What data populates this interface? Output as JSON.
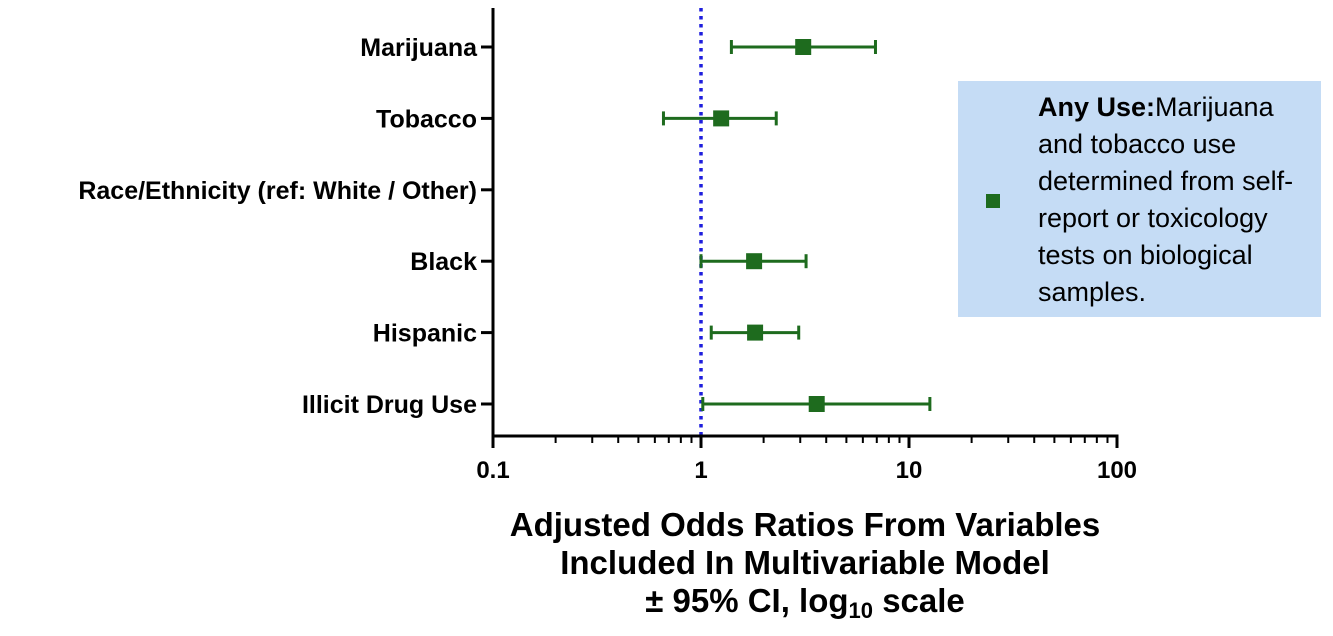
{
  "chart_data": {
    "type": "forest",
    "scale": "log10",
    "xlim": [
      0.1,
      100
    ],
    "reference_line": 1,
    "x_ticks": [
      "0.1",
      "1",
      "10",
      "100"
    ],
    "axis_title_lines": [
      "Adjusted Odds Ratios From Variables",
      "Included In Multivariable Model"
    ],
    "axis_title_line3": {
      "prefix": "± 95% CI, log",
      "sub": "10",
      "suffix": " scale"
    },
    "colors": {
      "marker": "#1e6b1e",
      "reference": "#1f1fdd",
      "legend_bg": "#c5dcf5"
    },
    "rows": [
      {
        "label": "Marijuana",
        "or": 3.1,
        "lo": 1.4,
        "hi": 6.9
      },
      {
        "label": "Tobacco",
        "or": 1.25,
        "lo": 0.66,
        "hi": 2.3
      },
      {
        "label": "Race/Ethnicity (ref: White / Other)",
        "or": null,
        "lo": null,
        "hi": null
      },
      {
        "label": "Black",
        "or": 1.8,
        "lo": 1.0,
        "hi": 3.2
      },
      {
        "label": "Hispanic",
        "or": 1.82,
        "lo": 1.12,
        "hi": 2.95
      },
      {
        "label": "Illicit Drug Use",
        "or": 3.6,
        "lo": 1.02,
        "hi": 12.6
      }
    ],
    "legend": {
      "bold": "Any Use:",
      "text": "Marijuana and tobacco use determined from self-report or toxicology tests on biological samples."
    }
  }
}
